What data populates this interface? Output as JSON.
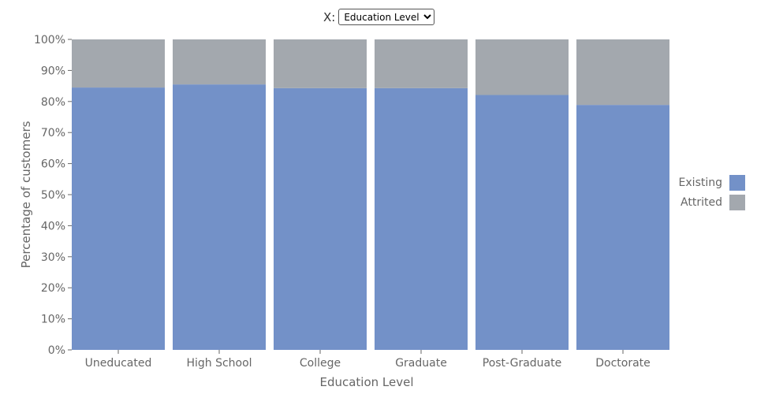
{
  "control": {
    "label": "X:",
    "options": [
      "Education Level"
    ],
    "selected": "Education Level"
  },
  "chart_data": {
    "type": "bar",
    "stacked": true,
    "categories": [
      "Uneducated",
      "High School",
      "College",
      "Graduate",
      "Post-Graduate",
      "Doctorate"
    ],
    "series": [
      {
        "name": "Existing",
        "color": "#7391c8",
        "values": [
          84.5,
          85.5,
          84.3,
          84.3,
          82.1,
          78.9
        ]
      },
      {
        "name": "Attrited",
        "color": "#a3a8ae",
        "values": [
          15.5,
          14.5,
          15.7,
          15.7,
          17.9,
          21.1
        ]
      }
    ],
    "xlabel": "Education Level",
    "ylabel": "Percentage of customers",
    "ylim": [
      0,
      100
    ],
    "yticks": [
      "0%",
      "10%",
      "20%",
      "30%",
      "40%",
      "50%",
      "60%",
      "70%",
      "80%",
      "90%",
      "100%"
    ],
    "grid": false,
    "legend_position": "right"
  }
}
